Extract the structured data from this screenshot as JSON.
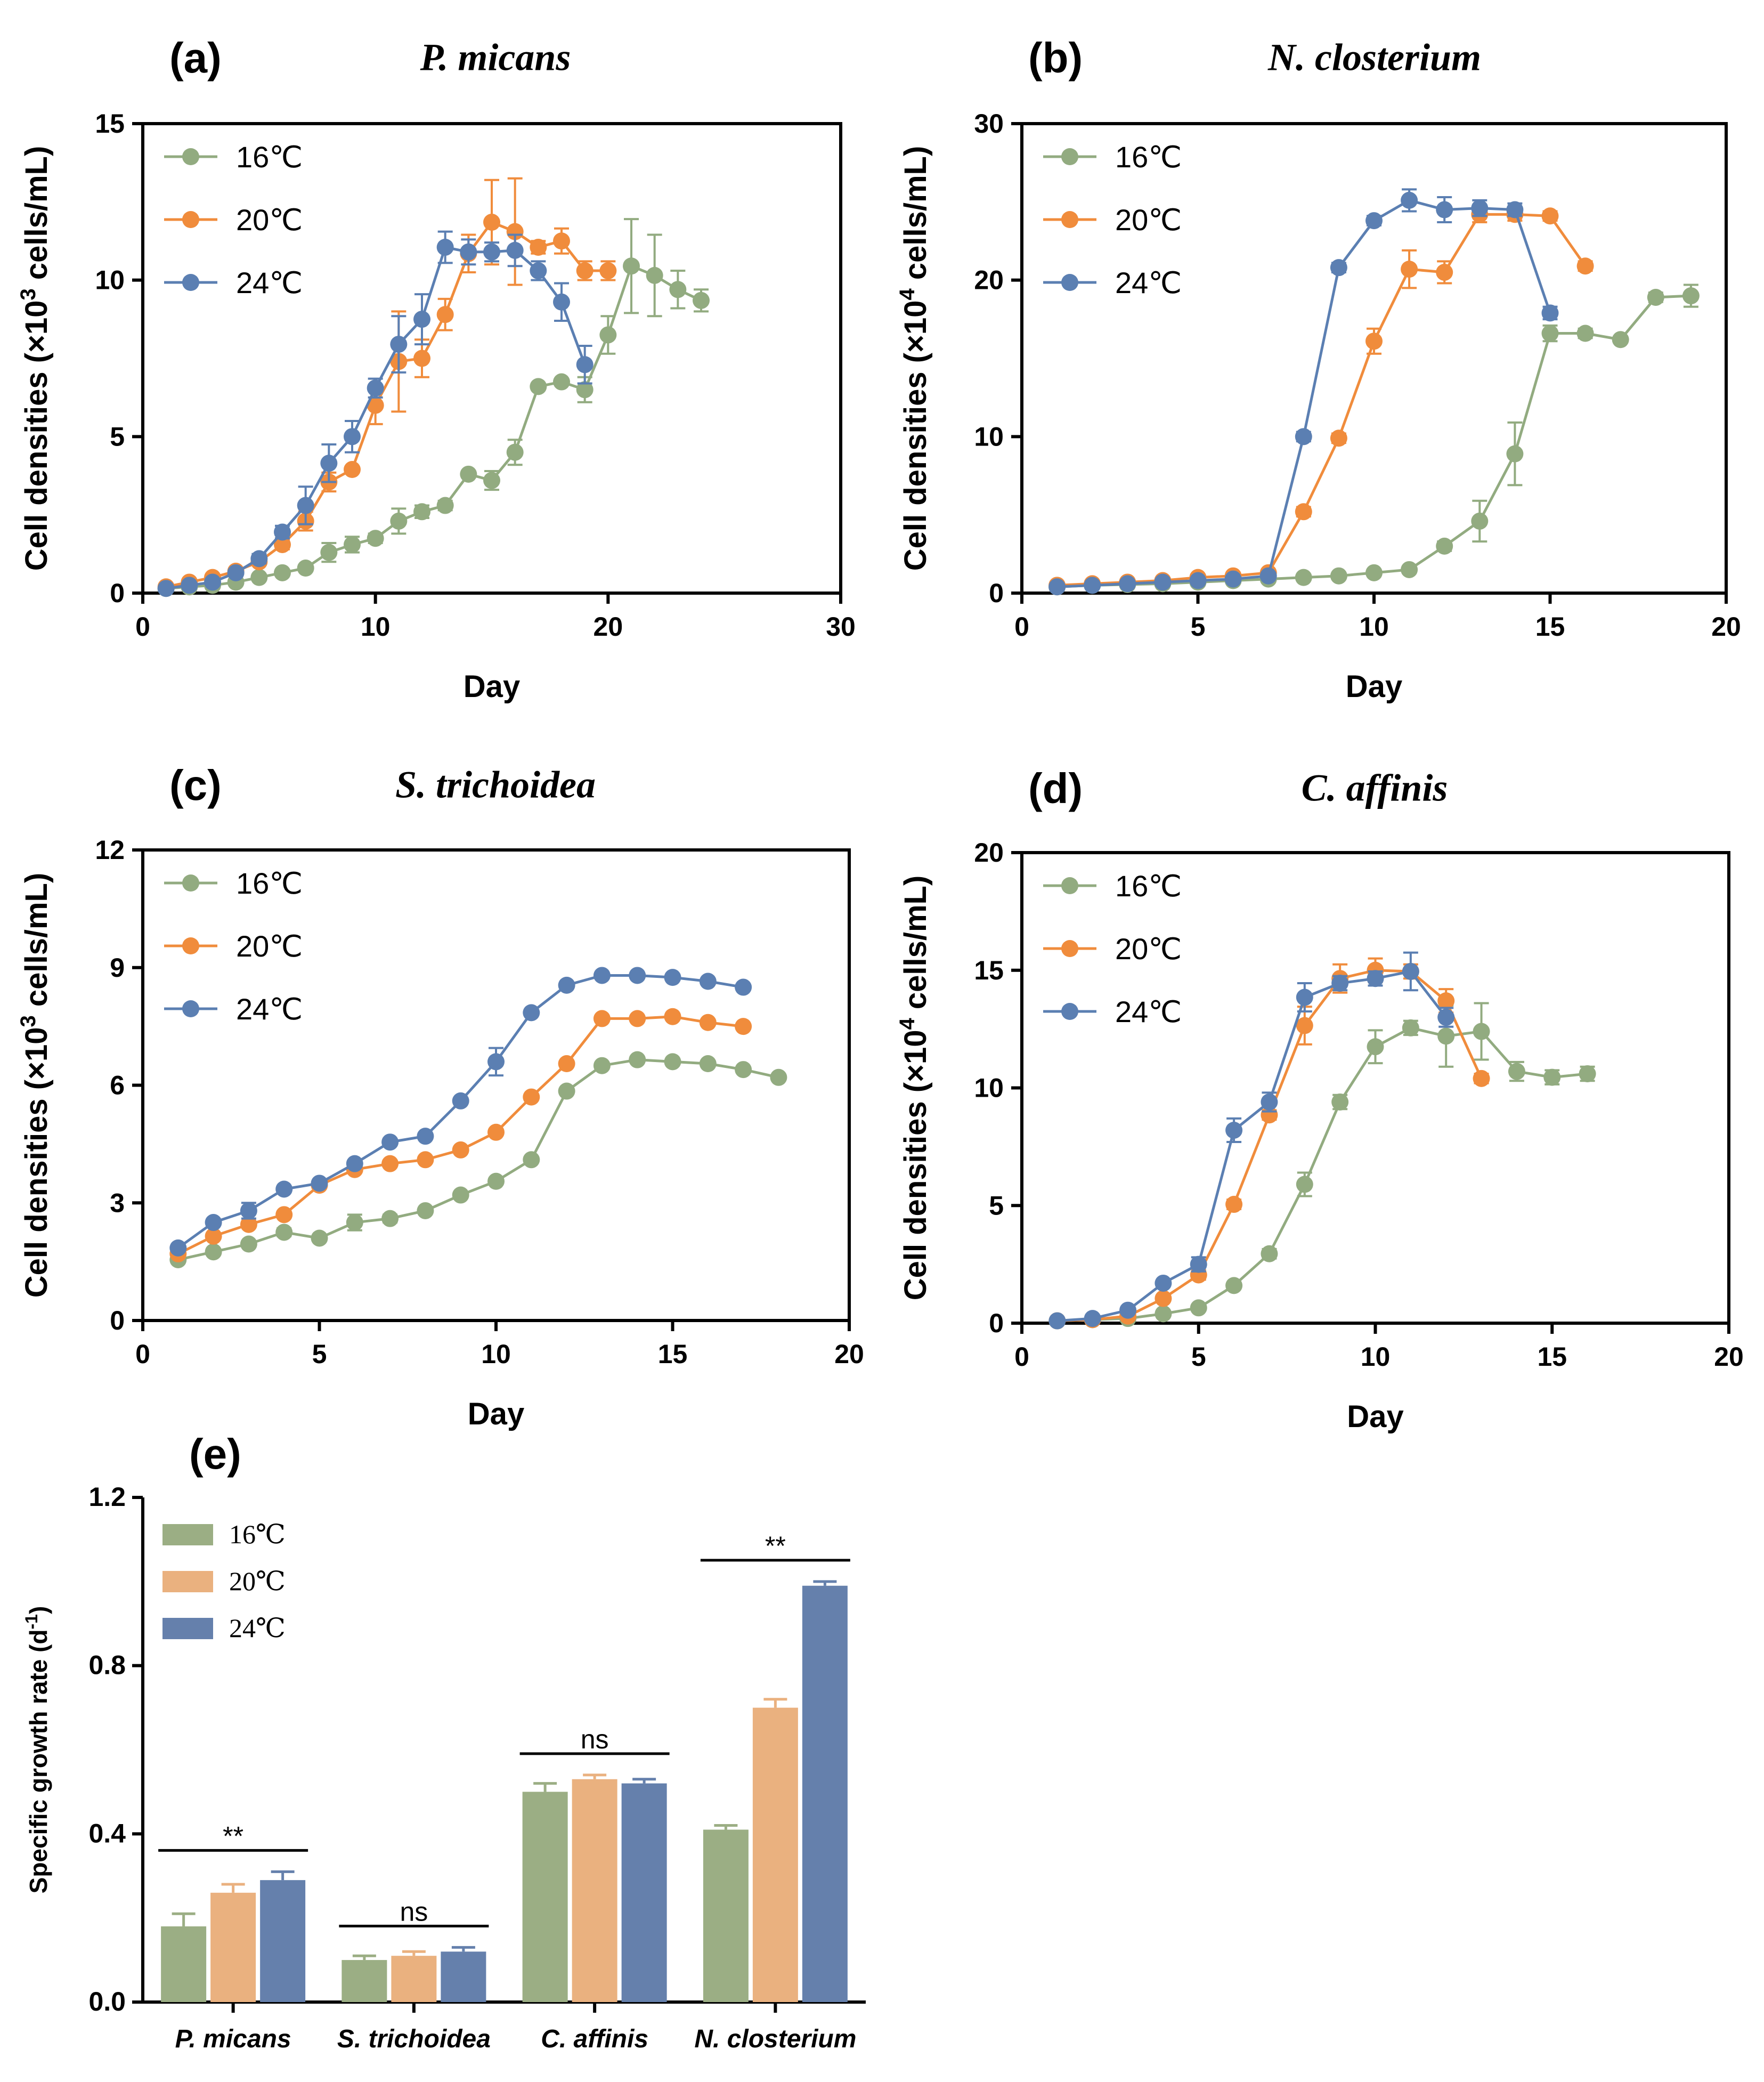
{
  "chart_data": [
    {
      "panel": "(a)",
      "type": "line",
      "title": "P. micans",
      "xlabel": "Day",
      "ylabel_prefix": "Cell densities (×10",
      "ylabel_exp": "3",
      "ylabel_suffix": " cells/mL)",
      "xlim": [
        0,
        30
      ],
      "ylim": [
        0,
        15
      ],
      "xticks": [
        0,
        10,
        20,
        30
      ],
      "yticks": [
        0,
        5,
        10,
        15
      ],
      "legend": "top-left",
      "series": [
        {
          "name": "16℃",
          "color": "#92ab80",
          "x": [
            1,
            2,
            3,
            4,
            5,
            6,
            7,
            8,
            9,
            10,
            11,
            12,
            13,
            14,
            15,
            16,
            17,
            18,
            19,
            20,
            21,
            22,
            23,
            24
          ],
          "y": [
            0.15,
            0.2,
            0.25,
            0.35,
            0.5,
            0.65,
            0.8,
            1.3,
            1.55,
            1.75,
            2.3,
            2.6,
            2.8,
            3.8,
            3.6,
            4.5,
            6.6,
            6.75,
            6.5,
            8.25,
            10.45,
            10.15,
            9.7,
            9.35
          ],
          "err": [
            0.05,
            0.05,
            0.05,
            0.05,
            0.05,
            0.1,
            0.1,
            0.3,
            0.25,
            0.15,
            0.4,
            0.2,
            0.15,
            0.1,
            0.3,
            0.4,
            0.1,
            0.1,
            0.4,
            0.6,
            1.5,
            1.3,
            0.6,
            0.35
          ]
        },
        {
          "name": "20℃",
          "color": "#f08c3c",
          "x": [
            1,
            2,
            3,
            4,
            5,
            6,
            7,
            8,
            9,
            10,
            11,
            12,
            13,
            14,
            15,
            16,
            17,
            18,
            19,
            20
          ],
          "y": [
            0.2,
            0.35,
            0.5,
            0.7,
            1.0,
            1.55,
            2.3,
            3.55,
            3.95,
            6.0,
            7.4,
            7.5,
            8.9,
            10.85,
            11.85,
            11.55,
            11.05,
            11.25,
            10.3,
            10.3
          ],
          "err": [
            0.05,
            0.05,
            0.05,
            0.05,
            0.1,
            0.15,
            0.3,
            0.3,
            0.1,
            0.6,
            1.6,
            0.6,
            0.5,
            0.6,
            1.35,
            1.7,
            0.2,
            0.4,
            0.3,
            0.3
          ]
        },
        {
          "name": "24℃",
          "color": "#5b7fb2",
          "x": [
            1,
            2,
            3,
            4,
            5,
            6,
            7,
            8,
            9,
            10,
            11,
            12,
            13,
            14,
            15,
            16,
            17,
            18,
            19
          ],
          "y": [
            0.15,
            0.25,
            0.35,
            0.65,
            1.1,
            1.95,
            2.8,
            4.15,
            5.0,
            6.55,
            7.95,
            8.75,
            11.05,
            10.9,
            10.9,
            10.95,
            10.3,
            9.3,
            7.3
          ],
          "err": [
            0.05,
            0.05,
            0.05,
            0.1,
            0.15,
            0.2,
            0.6,
            0.6,
            0.5,
            0.3,
            0.9,
            0.8,
            0.5,
            0.4,
            0.3,
            0.5,
            0.3,
            0.6,
            0.6
          ]
        }
      ]
    },
    {
      "panel": "(b)",
      "type": "line",
      "title": "N. closterium",
      "xlabel": "Day",
      "ylabel_prefix": "Cell densities (×10",
      "ylabel_exp": "4",
      "ylabel_suffix": " cells/mL)",
      "xlim": [
        0,
        20
      ],
      "ylim": [
        0,
        30
      ],
      "xticks": [
        0,
        5,
        10,
        15,
        20
      ],
      "yticks": [
        0,
        10,
        20,
        30
      ],
      "legend": "top-left",
      "series": [
        {
          "name": "16℃",
          "color": "#92ab80",
          "x": [
            1,
            2,
            3,
            4,
            5,
            6,
            7,
            8,
            9,
            10,
            11,
            12,
            13,
            14,
            15,
            16,
            17,
            18,
            19
          ],
          "y": [
            0.4,
            0.5,
            0.55,
            0.6,
            0.7,
            0.8,
            0.9,
            1.0,
            1.1,
            1.3,
            1.5,
            3.0,
            4.6,
            8.9,
            16.6,
            16.6,
            16.2,
            18.9,
            19.0
          ],
          "err": [
            0.1,
            0.1,
            0.1,
            0.1,
            0.1,
            0.1,
            0.1,
            0.1,
            0.1,
            0.1,
            0.2,
            0.3,
            1.3,
            2.0,
            0.5,
            0.3,
            0.2,
            0.3,
            0.7
          ]
        },
        {
          "name": "20℃",
          "color": "#f08c3c",
          "x": [
            1,
            2,
            3,
            4,
            5,
            6,
            7,
            8,
            9,
            10,
            11,
            12,
            13,
            14,
            15,
            16
          ],
          "y": [
            0.5,
            0.6,
            0.7,
            0.8,
            1.0,
            1.1,
            1.3,
            5.2,
            9.9,
            16.1,
            20.7,
            20.5,
            24.2,
            24.2,
            24.1,
            20.9
          ],
          "err": [
            0.1,
            0.1,
            0.1,
            0.1,
            0.1,
            0.1,
            0.2,
            0.3,
            0.3,
            0.8,
            1.2,
            0.7,
            0.5,
            0.4,
            0.3,
            0.3
          ]
        },
        {
          "name": "24℃",
          "color": "#5b7fb2",
          "x": [
            1,
            2,
            3,
            4,
            5,
            6,
            7,
            8,
            9,
            10,
            11,
            12,
            13,
            14,
            15
          ],
          "y": [
            0.4,
            0.5,
            0.6,
            0.7,
            0.8,
            0.9,
            1.1,
            10.0,
            20.8,
            23.8,
            25.1,
            24.5,
            24.6,
            24.5,
            17.9
          ],
          "err": [
            0.1,
            0.1,
            0.1,
            0.1,
            0.1,
            0.1,
            0.1,
            0.3,
            0.3,
            0.3,
            0.7,
            0.8,
            0.5,
            0.4,
            0.4
          ]
        }
      ]
    },
    {
      "panel": "(c)",
      "type": "line",
      "title": "S. trichoidea",
      "xlabel": "Day",
      "ylabel_prefix": "Cell densities (×10",
      "ylabel_exp": "3",
      "ylabel_suffix": " cells/mL)",
      "xlim": [
        0,
        20
      ],
      "ylim": [
        0,
        12
      ],
      "xticks": [
        0,
        5,
        10,
        15,
        20
      ],
      "yticks": [
        0,
        3,
        6,
        9,
        12
      ],
      "legend": "top-left",
      "series": [
        {
          "name": "16℃",
          "color": "#92ab80",
          "x": [
            1,
            2,
            3,
            4,
            5,
            6,
            7,
            8,
            9,
            10,
            11,
            12,
            13,
            14,
            15,
            16,
            17,
            18
          ],
          "y": [
            1.55,
            1.75,
            1.95,
            2.25,
            2.1,
            2.5,
            2.6,
            2.8,
            3.2,
            3.55,
            4.1,
            5.85,
            6.5,
            6.65,
            6.6,
            6.55,
            6.4,
            6.2
          ],
          "err": [
            0.05,
            0.05,
            0.05,
            0.1,
            0.05,
            0.2,
            0.1,
            0.05,
            0.05,
            0.05,
            0.05,
            0.05,
            0.05,
            0.05,
            0.05,
            0.05,
            0.05,
            0.05
          ]
        },
        {
          "name": "20℃",
          "color": "#f08c3c",
          "x": [
            1,
            2,
            3,
            4,
            5,
            6,
            7,
            8,
            9,
            10,
            11,
            12,
            13,
            14,
            15,
            16,
            17
          ],
          "y": [
            1.7,
            2.15,
            2.45,
            2.7,
            3.45,
            3.85,
            4.0,
            4.1,
            4.35,
            4.8,
            5.7,
            6.55,
            7.7,
            7.7,
            7.75,
            7.6,
            7.5
          ],
          "err": [
            0.05,
            0.05,
            0.05,
            0.05,
            0.05,
            0.05,
            0.05,
            0.05,
            0.05,
            0.05,
            0.05,
            0.05,
            0.05,
            0.05,
            0.05,
            0.05,
            0.05
          ]
        },
        {
          "name": "24℃",
          "color": "#5b7fb2",
          "x": [
            1,
            2,
            3,
            4,
            5,
            6,
            7,
            8,
            9,
            10,
            11,
            12,
            13,
            14,
            15,
            16,
            17
          ],
          "y": [
            1.85,
            2.5,
            2.8,
            3.35,
            3.5,
            4.0,
            4.55,
            4.7,
            5.6,
            6.6,
            7.85,
            8.55,
            8.8,
            8.8,
            8.75,
            8.65,
            8.5
          ],
          "err": [
            0.05,
            0.05,
            0.2,
            0.05,
            0.05,
            0.05,
            0.05,
            0.05,
            0.05,
            0.35,
            0.05,
            0.05,
            0.05,
            0.05,
            0.05,
            0.05,
            0.05
          ]
        }
      ]
    },
    {
      "panel": "(d)",
      "type": "line",
      "title": "C. affinis",
      "xlabel": "Day",
      "ylabel_prefix": "Cell densities (×10",
      "ylabel_exp": "4",
      "ylabel_suffix": " cells/mL)",
      "xlim": [
        0,
        20
      ],
      "ylim": [
        0,
        20
      ],
      "xticks": [
        0,
        5,
        10,
        15,
        20
      ],
      "yticks": [
        0,
        5,
        10,
        15,
        20
      ],
      "legend": "top-left",
      "series": [
        {
          "name": "16℃",
          "color": "#92ab80",
          "x": [
            1,
            2,
            3,
            4,
            5,
            6,
            7,
            8,
            9,
            10,
            11,
            12,
            13,
            14,
            15,
            16
          ],
          "y": [
            0.1,
            0.15,
            0.2,
            0.4,
            0.65,
            1.6,
            2.95,
            5.9,
            9.4,
            11.75,
            12.55,
            12.2,
            12.4,
            10.7,
            10.45,
            10.6
          ],
          "err": [
            0.05,
            0.05,
            0.05,
            0.05,
            0.1,
            0.1,
            0.2,
            0.5,
            0.3,
            0.7,
            0.3,
            1.3,
            1.2,
            0.4,
            0.3,
            0.3
          ]
        },
        {
          "name": "20℃",
          "color": "#f08c3c",
          "x": [
            1,
            2,
            3,
            4,
            5,
            6,
            7,
            8,
            9,
            10,
            11,
            12,
            13
          ],
          "y": [
            0.1,
            0.15,
            0.3,
            1.05,
            2.05,
            5.05,
            8.85,
            12.65,
            14.65,
            15.0,
            14.95,
            13.7,
            10.4
          ],
          "err": [
            0.05,
            0.05,
            0.05,
            0.1,
            0.2,
            0.2,
            0.2,
            0.8,
            0.6,
            0.5,
            0.3,
            0.5,
            0.2
          ]
        },
        {
          "name": "24℃",
          "color": "#5b7fb2",
          "x": [
            1,
            2,
            3,
            4,
            5,
            6,
            7,
            8,
            9,
            10,
            11,
            12
          ],
          "y": [
            0.1,
            0.2,
            0.55,
            1.7,
            2.5,
            8.2,
            9.4,
            13.85,
            14.45,
            14.65,
            14.95,
            13.0
          ],
          "err": [
            0.05,
            0.05,
            0.1,
            0.1,
            0.3,
            0.5,
            0.4,
            0.6,
            0.3,
            0.3,
            0.8,
            0.4
          ]
        }
      ]
    },
    {
      "panel": "(e)",
      "type": "bar",
      "title": "",
      "xlabel": "",
      "ylabel": "Specific growth rate (d",
      "ylabel_exp": "-1",
      "ylabel_close": ")",
      "ylim": [
        0,
        1.2
      ],
      "yticks": [
        "0.0",
        "0.4",
        "0.8",
        "1.2"
      ],
      "legend": "top-left",
      "categories": [
        "P. micans",
        "S. trichoidea",
        "C. affinis",
        "N. closterium"
      ],
      "series": [
        {
          "name": "16℃",
          "color": "#9bae84",
          "values": [
            0.18,
            0.1,
            0.5,
            0.41
          ],
          "err": [
            0.03,
            0.01,
            0.02,
            0.01
          ]
        },
        {
          "name": "20℃",
          "color": "#eab17f",
          "values": [
            0.26,
            0.11,
            0.53,
            0.7
          ],
          "err": [
            0.02,
            0.01,
            0.01,
            0.02
          ]
        },
        {
          "name": "24℃",
          "color": "#6580ac",
          "values": [
            0.29,
            0.12,
            0.52,
            0.99
          ],
          "err": [
            0.02,
            0.01,
            0.01,
            0.01
          ]
        }
      ],
      "significance": [
        "**",
        "ns",
        "ns",
        "**"
      ]
    }
  ]
}
